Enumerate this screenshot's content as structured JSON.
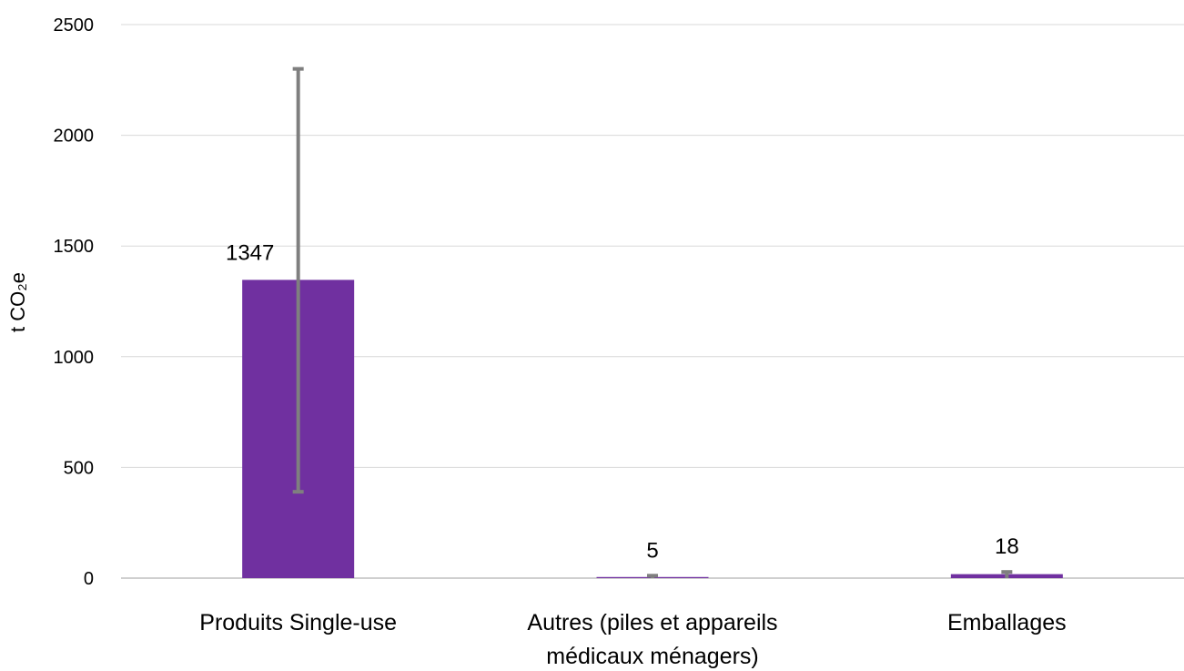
{
  "chart_data": {
    "type": "bar",
    "title": "",
    "xlabel": "",
    "ylabel": "t CO₂e",
    "ylim": [
      0,
      2500
    ],
    "yticks": [
      0,
      500,
      1000,
      1500,
      2000,
      2500
    ],
    "y_tick_labels": [
      "0",
      "500",
      "1000",
      "1500",
      "2000",
      "2500"
    ],
    "grid": "horizontal",
    "categories": [
      [
        "Produits Single-use"
      ],
      [
        "Autres (piles et appareils",
        "médicaux ménagers)"
      ],
      [
        "Emballages"
      ]
    ],
    "values": [
      1347,
      5,
      18
    ],
    "data_labels": [
      "1347",
      "5",
      "18"
    ],
    "error_bars": [
      {
        "low": 390,
        "high": 2300
      },
      {
        "low": 0,
        "high": 11
      },
      {
        "low": 0,
        "high": 28
      }
    ],
    "colors": {
      "bar": "#7030a0",
      "error_bar": "#7f7f7f",
      "grid": "#d9d9d9",
      "baseline": "#bfbfbf"
    }
  }
}
